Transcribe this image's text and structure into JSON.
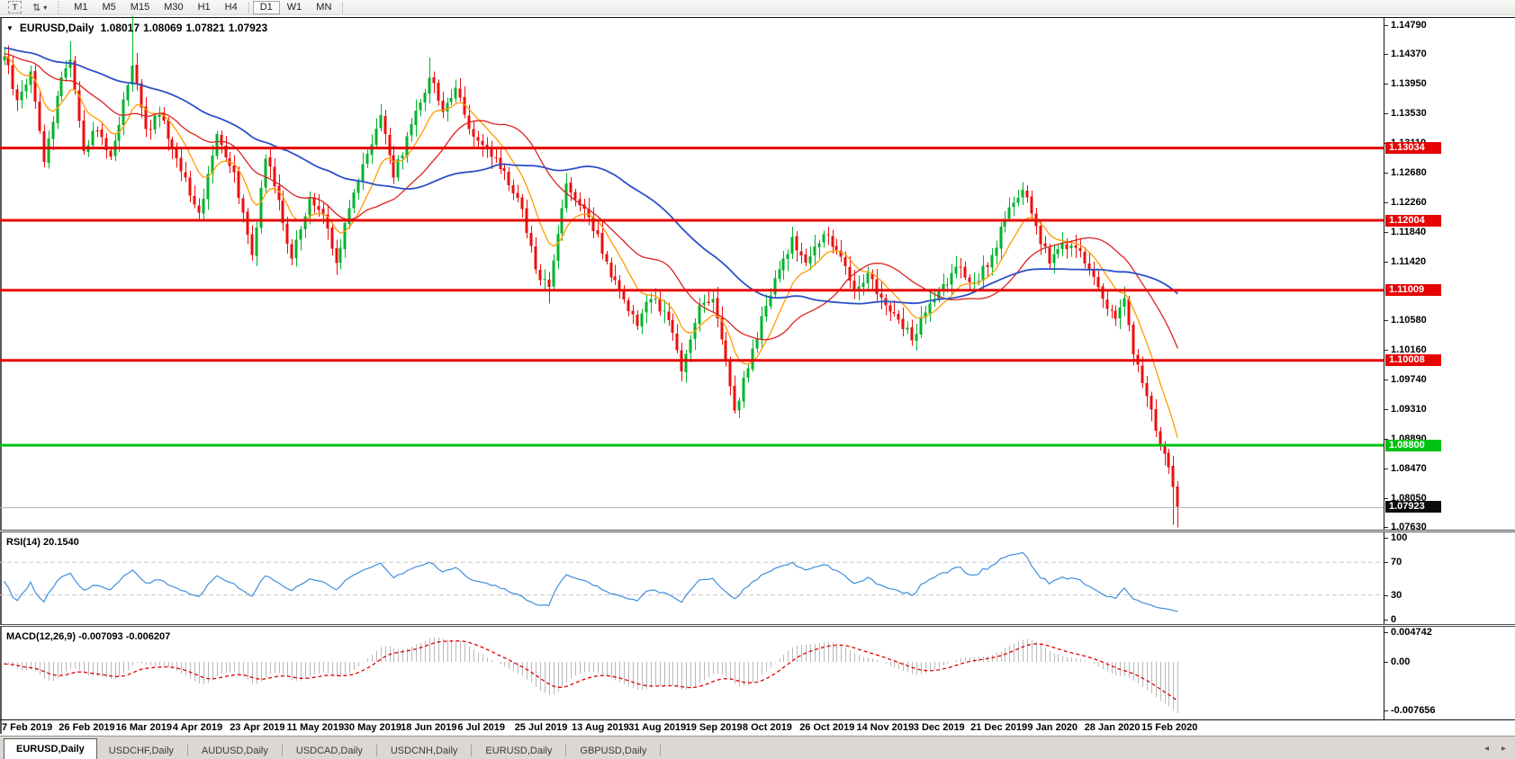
{
  "toolbar": {
    "text_tool": "T",
    "timeframes": [
      "M1",
      "M5",
      "M15",
      "M30",
      "H1",
      "H4",
      "D1",
      "W1",
      "MN"
    ],
    "active_timeframe": "D1"
  },
  "window": {
    "title_symbol": "EURUSD,Daily",
    "ohlc": {
      "open": "1.08017",
      "high": "1.08069",
      "low": "1.07821",
      "close": "1.07923"
    }
  },
  "price_axis": {
    "ticks": [
      {
        "label": "1.14790",
        "value": 1.1479
      },
      {
        "label": "1.14370",
        "value": 1.1437
      },
      {
        "label": "1.13950",
        "value": 1.1395
      },
      {
        "label": "1.13530",
        "value": 1.1353
      },
      {
        "label": "1.13110",
        "value": 1.1311
      },
      {
        "label": "1.12680",
        "value": 1.1268
      },
      {
        "label": "1.12260",
        "value": 1.1226
      },
      {
        "label": "1.11840",
        "value": 1.1184
      },
      {
        "label": "1.11420",
        "value": 1.1142
      },
      {
        "label": "1.10580",
        "value": 1.1058
      },
      {
        "label": "1.10160",
        "value": 1.1016
      },
      {
        "label": "1.09740",
        "value": 1.0974
      },
      {
        "label": "1.09310",
        "value": 1.0931
      },
      {
        "label": "1.08890",
        "value": 1.0889
      },
      {
        "label": "1.08470",
        "value": 1.0847
      },
      {
        "label": "1.08050",
        "value": 1.0805
      },
      {
        "label": "1.07630",
        "value": 1.0763
      }
    ],
    "current": {
      "label": "1.07923",
      "value": 1.07923,
      "bg": "#0a0a0a"
    }
  },
  "hlines": [
    {
      "label": "1.13034",
      "value": 1.13034,
      "color": "#e60505"
    },
    {
      "label": "1.12004",
      "value": 1.12004,
      "color": "#e60505"
    },
    {
      "label": "1.11009",
      "value": 1.11009,
      "color": "#e60505"
    },
    {
      "label": "1.10008",
      "value": 1.10008,
      "color": "#e60505"
    },
    {
      "label": "1.08800",
      "value": 1.088,
      "color": "#00c213"
    }
  ],
  "indicators": {
    "rsi": {
      "label": "RSI(14) 20.1540",
      "period": 14,
      "last_value": "20.1540",
      "line_color": "#3f8fdf",
      "levels": [
        70,
        30
      ],
      "ticks": [
        {
          "label": "100",
          "value": 100
        },
        {
          "label": "70",
          "value": 70
        },
        {
          "label": "30",
          "value": 30
        },
        {
          "label": "0",
          "value": 0
        }
      ]
    },
    "macd": {
      "label": "MACD(12,26,9) -0.007093 -0.006207",
      "params": "12,26,9",
      "values": [
        "-0.007093",
        "-0.006207"
      ],
      "histogram_color": "#b9b9b9",
      "signal_color": "#e00000",
      "ticks": [
        {
          "label": "0.004742",
          "value": 0.004742
        },
        {
          "label": "0.00",
          "value": 0
        },
        {
          "label": "-0.007656",
          "value": -0.007656
        }
      ]
    }
  },
  "chart_data": {
    "type": "candlestick",
    "symbol": "EURUSD",
    "timeframe": "Daily",
    "bars": 266,
    "ylim": [
      1.0763,
      1.1479
    ],
    "x_tick_labels": [
      "7 Feb 2019",
      "26 Feb 2019",
      "16 Mar 2019",
      "4 Apr 2019",
      "23 Apr 2019",
      "11 May 2019",
      "30 May 2019",
      "18 Jun 2019",
      "6 Jul 2019",
      "25 Jul 2019",
      "13 Aug 2019",
      "31 Aug 2019",
      "19 Sep 2019",
      "8 Oct 2019",
      "26 Oct 2019",
      "14 Nov 2019",
      "3 Dec 2019",
      "21 Dec 2019",
      "9 Jan 2020",
      "28 Jan 2020",
      "15 Feb 2020"
    ],
    "price_anchors": [
      [
        0,
        1.1435
      ],
      [
        3,
        1.137
      ],
      [
        6,
        1.1412
      ],
      [
        9,
        1.1285
      ],
      [
        13,
        1.1405
      ],
      [
        15,
        1.143
      ],
      [
        18,
        1.13
      ],
      [
        21,
        1.133
      ],
      [
        24,
        1.129
      ],
      [
        29,
        1.142
      ],
      [
        32,
        1.133
      ],
      [
        35,
        1.135
      ],
      [
        39,
        1.129
      ],
      [
        44,
        1.121
      ],
      [
        48,
        1.1325
      ],
      [
        52,
        1.127
      ],
      [
        56,
        1.115
      ],
      [
        59,
        1.129
      ],
      [
        62,
        1.123
      ],
      [
        65,
        1.1145
      ],
      [
        69,
        1.123
      ],
      [
        72,
        1.121
      ],
      [
        75,
        1.114
      ],
      [
        78,
        1.122
      ],
      [
        81,
        1.128
      ],
      [
        85,
        1.135
      ],
      [
        88,
        1.126
      ],
      [
        91,
        1.132
      ],
      [
        96,
        1.1405
      ],
      [
        99,
        1.1355
      ],
      [
        102,
        1.139
      ],
      [
        106,
        1.132
      ],
      [
        110,
        1.129
      ],
      [
        113,
        1.127
      ],
      [
        117,
        1.1215
      ],
      [
        120,
        1.113
      ],
      [
        123,
        1.1105
      ],
      [
        127,
        1.1255
      ],
      [
        130,
        1.122
      ],
      [
        134,
        1.118
      ],
      [
        137,
        1.112
      ],
      [
        141,
        1.107
      ],
      [
        143,
        1.105
      ],
      [
        146,
        1.109
      ],
      [
        150,
        1.106
      ],
      [
        153,
        1.0985
      ],
      [
        157,
        1.108
      ],
      [
        160,
        1.109
      ],
      [
        163,
        1.1
      ],
      [
        165,
        1.093
      ],
      [
        168,
        1.099
      ],
      [
        172,
        1.108
      ],
      [
        175,
        1.113
      ],
      [
        178,
        1.1175
      ],
      [
        181,
        1.114
      ],
      [
        185,
        1.118
      ],
      [
        188,
        1.116
      ],
      [
        192,
        1.11
      ],
      [
        195,
        1.1125
      ],
      [
        199,
        1.108
      ],
      [
        202,
        1.106
      ],
      [
        205,
        1.103
      ],
      [
        209,
        1.108
      ],
      [
        213,
        1.111
      ],
      [
        216,
        1.1135
      ],
      [
        219,
        1.111
      ],
      [
        223,
        1.115
      ],
      [
        227,
        1.122
      ],
      [
        230,
        1.1245
      ],
      [
        233,
        1.119
      ],
      [
        236,
        1.114
      ],
      [
        239,
        1.117
      ],
      [
        242,
        1.116
      ],
      [
        245,
        1.113
      ],
      [
        248,
        1.109
      ],
      [
        251,
        1.106
      ],
      [
        253,
        1.109
      ],
      [
        255,
        1.101
      ],
      [
        258,
        1.095
      ],
      [
        260,
        1.09
      ],
      [
        263,
        1.085
      ],
      [
        265,
        1.07923
      ]
    ],
    "wick_spikes": [
      [
        15,
        "h",
        1.1455
      ],
      [
        29,
        "h",
        1.1492
      ],
      [
        96,
        "h",
        1.1432
      ],
      [
        123,
        "l",
        1.1082
      ],
      [
        153,
        "l",
        1.0978
      ],
      [
        165,
        "l",
        1.0926
      ],
      [
        205,
        "l",
        1.1022
      ],
      [
        264,
        "l",
        1.0767
      ],
      [
        265,
        "l",
        1.0763
      ]
    ],
    "up_color": "#00b32c",
    "down_color": "#ed0e0e",
    "moving_averages": [
      {
        "type": "ema",
        "period": 10,
        "color": "#ff9c00"
      },
      {
        "type": "sma",
        "period": 25,
        "color": "#dc2020"
      },
      {
        "type": "sma",
        "period": 55,
        "color": "#2b50c8"
      }
    ],
    "horizontal_levels": [
      1.13034,
      1.12004,
      1.11009,
      1.10008,
      1.088
    ]
  },
  "tabs": {
    "items": [
      "EURUSD,Daily",
      "USDCHF,Daily",
      "AUDUSD,Daily",
      "USDCAD,Daily",
      "USDCNH,Daily",
      "EURUSD,Daily",
      "GBPUSD,Daily"
    ],
    "active_index": 0
  },
  "icons": {
    "symbol_dropdown": "▼",
    "tool_caret": "▾",
    "arrows_tool": "⇅",
    "tab_scroll_left": "◂",
    "tab_scroll_right": "▸"
  }
}
